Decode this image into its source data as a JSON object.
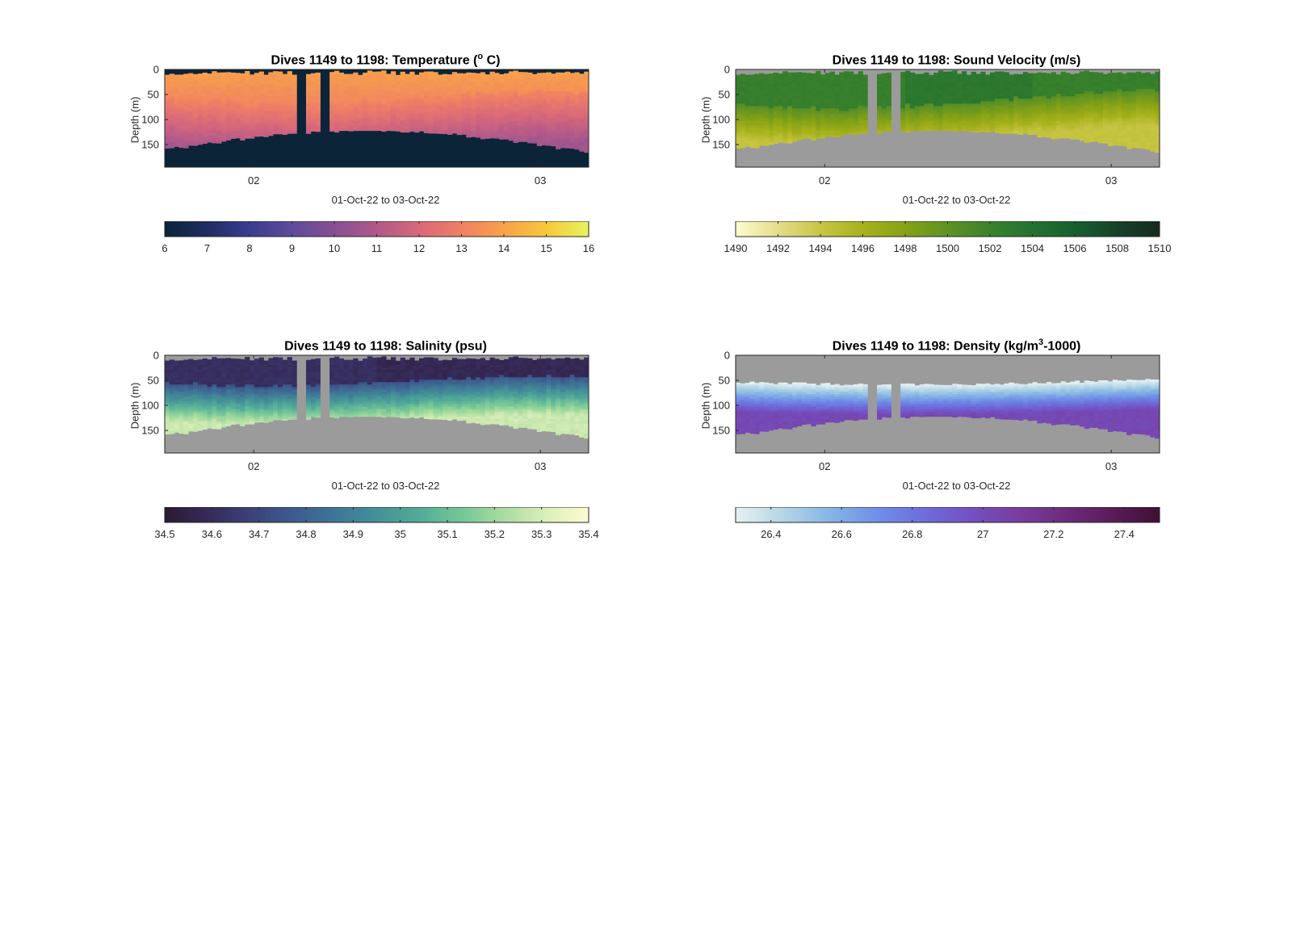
{
  "colors": {
    "land": "#9b9b9b",
    "temp_bathy": "#0b2438",
    "axis": "#262626"
  },
  "panels": [
    {
      "id": "temperature",
      "title_prefix": "Dives 1149 to 1198: Temperature (",
      "title_sup": "o",
      "title_suffix": " C)",
      "ylabel": "Depth (m)",
      "xlabel": "01-Oct-22 to 03-Oct-22",
      "yticks": [
        "0",
        "50",
        "100",
        "150"
      ],
      "xticks": [
        "02",
        "03"
      ],
      "colorbar_ticks": [
        "6",
        "7",
        "8",
        "9",
        "10",
        "11",
        "12",
        "13",
        "14",
        "15",
        "16"
      ],
      "colormap": [
        "#0b2438",
        "#1e2d63",
        "#3b3c8f",
        "#5e4a9a",
        "#874f94",
        "#b0598a",
        "#d8687a",
        "#ef8064",
        "#f9a14a",
        "#f7c83b",
        "#e7f45e"
      ]
    },
    {
      "id": "sound-velocity",
      "title_prefix": "Dives 1149 to 1198: Sound Velocity (m/s)",
      "title_sup": "",
      "title_suffix": "",
      "ylabel": "Depth (m)",
      "xlabel": "01-Oct-22 to 03-Oct-22",
      "yticks": [
        "0",
        "50",
        "100",
        "150"
      ],
      "xticks": [
        "02",
        "03"
      ],
      "colorbar_ticks": [
        "1490",
        "1492",
        "1494",
        "1496",
        "1498",
        "1500",
        "1502",
        "1504",
        "1506",
        "1508",
        "1510"
      ],
      "colormap": [
        "#fefcd0",
        "#e5dc8a",
        "#c8c544",
        "#a7b21c",
        "#86a216",
        "#5e9224",
        "#3b822b",
        "#237230",
        "#17602d",
        "#164229",
        "#162a1f"
      ]
    },
    {
      "id": "salinity",
      "title_prefix": "Dives 1149 to 1198: Salinity (psu)",
      "title_sup": "",
      "title_suffix": "",
      "ylabel": "Depth (m)",
      "xlabel": "01-Oct-22 to 03-Oct-22",
      "yticks": [
        "0",
        "50",
        "100",
        "150"
      ],
      "xticks": [
        "02",
        "03"
      ],
      "colorbar_ticks": [
        "34.5",
        "34.6",
        "34.7",
        "34.8",
        "34.9",
        "35",
        "35.1",
        "35.2",
        "35.3",
        "35.4"
      ],
      "colormap": [
        "#2a1a34",
        "#362a58",
        "#3c4079",
        "#3d5a8e",
        "#3f7596",
        "#449098",
        "#52ab98",
        "#75c697",
        "#a9dc9f",
        "#dcefb9",
        "#fdfbd3"
      ]
    },
    {
      "id": "density",
      "title_prefix": "Dives 1149 to 1198: Density (kg/m",
      "title_sup": "3",
      "title_suffix": "-1000)",
      "ylabel": "Depth (m)",
      "xlabel": "01-Oct-22 to 03-Oct-22",
      "yticks": [
        "0",
        "50",
        "100",
        "150"
      ],
      "xticks": [
        "02",
        "03"
      ],
      "colorbar_ticks": [
        "26.4",
        "26.6",
        "26.8",
        "27",
        "27.2",
        "27.4"
      ],
      "colormap": [
        "#e6f1f1",
        "#b4d6e6",
        "#86b5e5",
        "#6f8fe8",
        "#6d6ddc",
        "#7450c1",
        "#783d9e",
        "#6d2b7c",
        "#5a1c5a",
        "#3e0f35"
      ]
    }
  ],
  "chart_data": [
    {
      "type": "heatmap",
      "title": "Dives 1149 to 1198: Temperature (° C)",
      "xlabel": "01-Oct-22 to 03-Oct-22",
      "ylabel": "Depth (m)",
      "ylim": [
        195,
        0
      ],
      "clim": [
        6,
        16
      ],
      "x_ticks": [
        "02",
        "03"
      ],
      "y_ticks": [
        0,
        50,
        100,
        150
      ],
      "profile_depth_m": [
        0,
        25,
        50,
        75,
        100,
        125,
        150,
        175
      ],
      "temperature_degC_typical": [
        14.0,
        13.8,
        13.0,
        11.8,
        11.3,
        11.0,
        10.8,
        10.7
      ],
      "bottom_depth_m_range": [
        125,
        195
      ],
      "colorbar_ticks": [
        6,
        7,
        8,
        9,
        10,
        11,
        12,
        13,
        14,
        15,
        16
      ]
    },
    {
      "type": "heatmap",
      "title": "Dives 1149 to 1198: Sound Velocity (m/s)",
      "xlabel": "01-Oct-22 to 03-Oct-22",
      "ylabel": "Depth (m)",
      "ylim": [
        195,
        0
      ],
      "clim": [
        1490,
        1510
      ],
      "x_ticks": [
        "02",
        "03"
      ],
      "y_ticks": [
        0,
        50,
        100,
        150
      ],
      "profile_depth_m": [
        0,
        25,
        50,
        75,
        100,
        125,
        150,
        175
      ],
      "sound_velocity_ms_typical": [
        1502,
        1503,
        1501,
        1497,
        1495,
        1494.5,
        1494,
        1494
      ],
      "colorbar_ticks": [
        1490,
        1492,
        1494,
        1496,
        1498,
        1500,
        1502,
        1504,
        1506,
        1508,
        1510
      ]
    },
    {
      "type": "heatmap",
      "title": "Dives 1149 to 1198: Salinity (psu)",
      "xlabel": "01-Oct-22 to 03-Oct-22",
      "ylabel": "Depth (m)",
      "ylim": [
        195,
        0
      ],
      "clim": [
        34.5,
        35.4
      ],
      "x_ticks": [
        "02",
        "03"
      ],
      "y_ticks": [
        0,
        50,
        100,
        150
      ],
      "profile_depth_m": [
        0,
        25,
        50,
        75,
        100,
        125,
        150,
        175
      ],
      "salinity_psu_typical": [
        34.6,
        34.62,
        34.8,
        35.05,
        35.15,
        35.22,
        35.25,
        35.27
      ],
      "colorbar_ticks": [
        34.5,
        34.6,
        34.7,
        34.8,
        34.9,
        35,
        35.1,
        35.2,
        35.3,
        35.4
      ]
    },
    {
      "type": "heatmap",
      "title": "Dives 1149 to 1198: Density (kg/m³-1000)",
      "xlabel": "01-Oct-22 to 03-Oct-22",
      "ylabel": "Depth (m)",
      "ylim": [
        195,
        0
      ],
      "clim": [
        26.3,
        27.5
      ],
      "x_ticks": [
        "02",
        "03"
      ],
      "y_ticks": [
        0,
        50,
        100,
        150
      ],
      "profile_depth_m": [
        50,
        75,
        100,
        125,
        150,
        175
      ],
      "density_typical": [
        26.4,
        26.6,
        26.8,
        26.9,
        26.95,
        27.0
      ],
      "colorbar_ticks": [
        26.4,
        26.6,
        26.8,
        27,
        27.2,
        27.4
      ]
    }
  ]
}
